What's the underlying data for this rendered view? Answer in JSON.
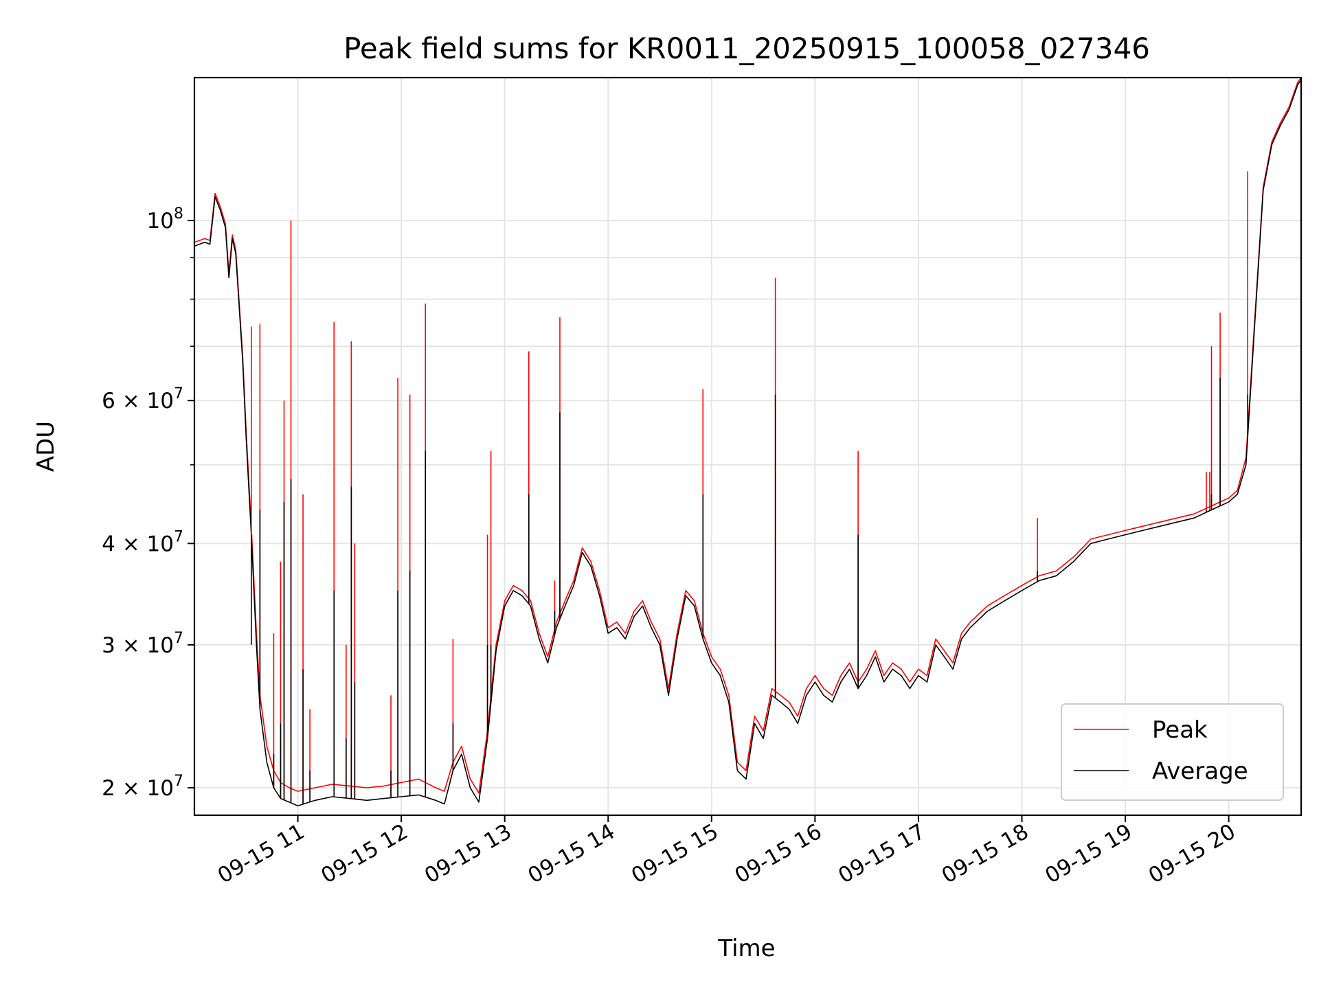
{
  "chart_data": {
    "type": "line",
    "title": "Peak field sums for KR0011_20250915_100058_027346",
    "xlabel": "Time",
    "ylabel": "ADU",
    "yscale": "log",
    "ylim": [
      18500000,
      150000000
    ],
    "xlim": [
      "2025-09-15 10:00",
      "2025-09-15 20:42"
    ],
    "grid": true,
    "legend_position": "lower-right",
    "colors": {
      "Peak": "#ff0000",
      "Average": "#000000"
    },
    "x_ticks": [
      {
        "label": "09-15 11",
        "value": "2025-09-15 11:00"
      },
      {
        "label": "09-15 12",
        "value": "2025-09-15 12:00"
      },
      {
        "label": "09-15 13",
        "value": "2025-09-15 13:00"
      },
      {
        "label": "09-15 14",
        "value": "2025-09-15 14:00"
      },
      {
        "label": "09-15 15",
        "value": "2025-09-15 15:00"
      },
      {
        "label": "09-15 16",
        "value": "2025-09-15 16:00"
      },
      {
        "label": "09-15 17",
        "value": "2025-09-15 17:00"
      },
      {
        "label": "09-15 18",
        "value": "2025-09-15 18:00"
      },
      {
        "label": "09-15 19",
        "value": "2025-09-15 19:00"
      },
      {
        "label": "09-15 20",
        "value": "2025-09-15 20:00"
      }
    ],
    "y_ticks": [
      {
        "label": "2 × 10^7",
        "value": 20000000
      },
      {
        "label": "3 × 10^7",
        "value": 30000000
      },
      {
        "label": "4 × 10^7",
        "value": 40000000
      },
      {
        "label": "6 × 10^7",
        "value": 60000000
      },
      {
        "label": "10^8",
        "value": 100000000
      }
    ],
    "y_minor_ticks": [
      50000000,
      70000000,
      80000000,
      90000000
    ],
    "series": [
      {
        "name": "Peak",
        "x": [
          "2025-09-15 10:00",
          "2025-09-15 10:06",
          "2025-09-15 10:09",
          "2025-09-15 10:12",
          "2025-09-15 10:15",
          "2025-09-15 10:18",
          "2025-09-15 10:20",
          "2025-09-15 10:22",
          "2025-09-15 10:24",
          "2025-09-15 10:28",
          "2025-09-15 10:30",
          "2025-09-15 10:33",
          "2025-09-15 10:36",
          "2025-09-15 10:38",
          "2025-09-15 10:42",
          "2025-09-15 10:46",
          "2025-09-15 10:50",
          "2025-09-15 10:55",
          "2025-09-15 11:00",
          "2025-09-15 11:10",
          "2025-09-15 11:20",
          "2025-09-15 11:30",
          "2025-09-15 11:40",
          "2025-09-15 11:50",
          "2025-09-15 12:00",
          "2025-09-15 12:10",
          "2025-09-15 12:20",
          "2025-09-15 12:25",
          "2025-09-15 12:30",
          "2025-09-15 12:35",
          "2025-09-15 12:40",
          "2025-09-15 12:45",
          "2025-09-15 12:50",
          "2025-09-15 12:55",
          "2025-09-15 13:00",
          "2025-09-15 13:05",
          "2025-09-15 13:10",
          "2025-09-15 13:15",
          "2025-09-15 13:20",
          "2025-09-15 13:25",
          "2025-09-15 13:30",
          "2025-09-15 13:35",
          "2025-09-15 13:40",
          "2025-09-15 13:45",
          "2025-09-15 13:50",
          "2025-09-15 13:55",
          "2025-09-15 14:00",
          "2025-09-15 14:05",
          "2025-09-15 14:10",
          "2025-09-15 14:15",
          "2025-09-15 14:20",
          "2025-09-15 14:25",
          "2025-09-15 14:30",
          "2025-09-15 14:35",
          "2025-09-15 14:40",
          "2025-09-15 14:45",
          "2025-09-15 14:50",
          "2025-09-15 14:55",
          "2025-09-15 15:00",
          "2025-09-15 15:05",
          "2025-09-15 15:10",
          "2025-09-15 15:15",
          "2025-09-15 15:20",
          "2025-09-15 15:25",
          "2025-09-15 15:30",
          "2025-09-15 15:35",
          "2025-09-15 15:40",
          "2025-09-15 15:45",
          "2025-09-15 15:50",
          "2025-09-15 15:55",
          "2025-09-15 16:00",
          "2025-09-15 16:05",
          "2025-09-15 16:10",
          "2025-09-15 16:15",
          "2025-09-15 16:20",
          "2025-09-15 16:25",
          "2025-09-15 16:30",
          "2025-09-15 16:35",
          "2025-09-15 16:40",
          "2025-09-15 16:45",
          "2025-09-15 16:50",
          "2025-09-15 16:55",
          "2025-09-15 17:00",
          "2025-09-15 17:05",
          "2025-09-15 17:10",
          "2025-09-15 17:15",
          "2025-09-15 17:20",
          "2025-09-15 17:25",
          "2025-09-15 17:30",
          "2025-09-15 17:40",
          "2025-09-15 17:50",
          "2025-09-15 18:00",
          "2025-09-15 18:10",
          "2025-09-15 18:20",
          "2025-09-15 18:30",
          "2025-09-15 18:40",
          "2025-09-15 18:50",
          "2025-09-15 19:00",
          "2025-09-15 19:10",
          "2025-09-15 19:20",
          "2025-09-15 19:30",
          "2025-09-15 19:40",
          "2025-09-15 19:50",
          "2025-09-15 20:00",
          "2025-09-15 20:05",
          "2025-09-15 20:10",
          "2025-09-15 20:15",
          "2025-09-15 20:20",
          "2025-09-15 20:25",
          "2025-09-15 20:30",
          "2025-09-15 20:35",
          "2025-09-15 20:40",
          "2025-09-15 20:42"
        ],
        "values": [
          94000000,
          95000000,
          94500000,
          108000000,
          104000000,
          99000000,
          86000000,
          96000000,
          92000000,
          68000000,
          55000000,
          42000000,
          31000000,
          26000000,
          22500000,
          21000000,
          20300000,
          20000000,
          19800000,
          20000000,
          20200000,
          20100000,
          20000000,
          20100000,
          20300000,
          20500000,
          20000000,
          19800000,
          21500000,
          22500000,
          20500000,
          19700000,
          23500000,
          30000000,
          34000000,
          35500000,
          35000000,
          34000000,
          31000000,
          29000000,
          32000000,
          34000000,
          36000000,
          39500000,
          38000000,
          35000000,
          31500000,
          32000000,
          31000000,
          33000000,
          34000000,
          32000000,
          30500000,
          26500000,
          31000000,
          35000000,
          34000000,
          31000000,
          29000000,
          28000000,
          26000000,
          21500000,
          21000000,
          24500000,
          23500000,
          26500000,
          26000000,
          25500000,
          24500000,
          26500000,
          27500000,
          26500000,
          26000000,
          27500000,
          28500000,
          27000000,
          28000000,
          29500000,
          27500000,
          28500000,
          28000000,
          27000000,
          28000000,
          27500000,
          30500000,
          29500000,
          28500000,
          31000000,
          32000000,
          33500000,
          34500000,
          35500000,
          36500000,
          37000000,
          38500000,
          40500000,
          41000000,
          41500000,
          42000000,
          42500000,
          43000000,
          43500000,
          44500000,
          45500000,
          46500000,
          51000000,
          75000000,
          110000000,
          125000000,
          132000000,
          138000000,
          148000000,
          150000000
        ]
      },
      {
        "name": "Average",
        "x": [
          "2025-09-15 10:00",
          "2025-09-15 10:06",
          "2025-09-15 10:09",
          "2025-09-15 10:12",
          "2025-09-15 10:15",
          "2025-09-15 10:18",
          "2025-09-15 10:20",
          "2025-09-15 10:22",
          "2025-09-15 10:24",
          "2025-09-15 10:28",
          "2025-09-15 10:30",
          "2025-09-15 10:33",
          "2025-09-15 10:36",
          "2025-09-15 10:38",
          "2025-09-15 10:42",
          "2025-09-15 10:46",
          "2025-09-15 10:50",
          "2025-09-15 10:55",
          "2025-09-15 11:00",
          "2025-09-15 11:10",
          "2025-09-15 11:20",
          "2025-09-15 11:30",
          "2025-09-15 11:40",
          "2025-09-15 11:50",
          "2025-09-15 12:00",
          "2025-09-15 12:10",
          "2025-09-15 12:20",
          "2025-09-15 12:25",
          "2025-09-15 12:30",
          "2025-09-15 12:35",
          "2025-09-15 12:40",
          "2025-09-15 12:45",
          "2025-09-15 12:50",
          "2025-09-15 12:55",
          "2025-09-15 13:00",
          "2025-09-15 13:05",
          "2025-09-15 13:10",
          "2025-09-15 13:15",
          "2025-09-15 13:20",
          "2025-09-15 13:25",
          "2025-09-15 13:30",
          "2025-09-15 13:35",
          "2025-09-15 13:40",
          "2025-09-15 13:45",
          "2025-09-15 13:50",
          "2025-09-15 13:55",
          "2025-09-15 14:00",
          "2025-09-15 14:05",
          "2025-09-15 14:10",
          "2025-09-15 14:15",
          "2025-09-15 14:20",
          "2025-09-15 14:25",
          "2025-09-15 14:30",
          "2025-09-15 14:35",
          "2025-09-15 14:40",
          "2025-09-15 14:45",
          "2025-09-15 14:50",
          "2025-09-15 14:55",
          "2025-09-15 15:00",
          "2025-09-15 15:05",
          "2025-09-15 15:10",
          "2025-09-15 15:15",
          "2025-09-15 15:20",
          "2025-09-15 15:25",
          "2025-09-15 15:30",
          "2025-09-15 15:35",
          "2025-09-15 15:40",
          "2025-09-15 15:45",
          "2025-09-15 15:50",
          "2025-09-15 15:55",
          "2025-09-15 16:00",
          "2025-09-15 16:05",
          "2025-09-15 16:10",
          "2025-09-15 16:15",
          "2025-09-15 16:20",
          "2025-09-15 16:25",
          "2025-09-15 16:30",
          "2025-09-15 16:35",
          "2025-09-15 16:40",
          "2025-09-15 16:45",
          "2025-09-15 16:50",
          "2025-09-15 16:55",
          "2025-09-15 17:00",
          "2025-09-15 17:05",
          "2025-09-15 17:10",
          "2025-09-15 17:15",
          "2025-09-15 17:20",
          "2025-09-15 17:25",
          "2025-09-15 17:30",
          "2025-09-15 17:40",
          "2025-09-15 17:50",
          "2025-09-15 18:00",
          "2025-09-15 18:10",
          "2025-09-15 18:20",
          "2025-09-15 18:30",
          "2025-09-15 18:40",
          "2025-09-15 18:50",
          "2025-09-15 19:00",
          "2025-09-15 19:10",
          "2025-09-15 19:20",
          "2025-09-15 19:30",
          "2025-09-15 19:40",
          "2025-09-15 19:50",
          "2025-09-15 20:00",
          "2025-09-15 20:05",
          "2025-09-15 20:10",
          "2025-09-15 20:15",
          "2025-09-15 20:20",
          "2025-09-15 20:25",
          "2025-09-15 20:30",
          "2025-09-15 20:35",
          "2025-09-15 20:40",
          "2025-09-15 20:42"
        ],
        "values": [
          93000000,
          94000000,
          93500000,
          107000000,
          103000000,
          98000000,
          85000000,
          95000000,
          91000000,
          67000000,
          54000000,
          41000000,
          30000000,
          25000000,
          21500000,
          20000000,
          19400000,
          19200000,
          19000000,
          19300000,
          19500000,
          19400000,
          19300000,
          19400000,
          19500000,
          19600000,
          19300000,
          19100000,
          21000000,
          22000000,
          20000000,
          19200000,
          23000000,
          29500000,
          33500000,
          35000000,
          34500000,
          33500000,
          30500000,
          28500000,
          31500000,
          33500000,
          35500000,
          39000000,
          37500000,
          34500000,
          31000000,
          31500000,
          30500000,
          32500000,
          33500000,
          31500000,
          30000000,
          26000000,
          30500000,
          34500000,
          33500000,
          30500000,
          28500000,
          27500000,
          25500000,
          21000000,
          20500000,
          24000000,
          23000000,
          26000000,
          25500000,
          25000000,
          24000000,
          26000000,
          27000000,
          26000000,
          25500000,
          27000000,
          28000000,
          26500000,
          27500000,
          29000000,
          27000000,
          28000000,
          27500000,
          26500000,
          27500000,
          27000000,
          30000000,
          29000000,
          28000000,
          30500000,
          31500000,
          33000000,
          34000000,
          35000000,
          36000000,
          36500000,
          38000000,
          40000000,
          40500000,
          41000000,
          41500000,
          42000000,
          42500000,
          43000000,
          44000000,
          45000000,
          46000000,
          50000000,
          74000000,
          109000000,
          124000000,
          131000000,
          137000000,
          147000000,
          149000000
        ]
      }
    ],
    "spikes": [
      {
        "x": "2025-09-15 10:33",
        "peak": 74000000,
        "average": 30000000
      },
      {
        "x": "2025-09-15 10:38",
        "peak": 74500000,
        "average": 44000000
      },
      {
        "x": "2025-09-15 10:46",
        "peak": 31000000,
        "average": 22000000
      },
      {
        "x": "2025-09-15 10:50",
        "peak": 38000000,
        "average": 24000000
      },
      {
        "x": "2025-09-15 10:52",
        "peak": 60000000,
        "average": 45000000
      },
      {
        "x": "2025-09-15 10:56",
        "peak": 100000000,
        "average": 48000000
      },
      {
        "x": "2025-09-15 11:03",
        "peak": 46000000,
        "average": 28000000
      },
      {
        "x": "2025-09-15 11:07",
        "peak": 25000000,
        "average": 21000000
      },
      {
        "x": "2025-09-15 11:21",
        "peak": 75000000,
        "average": 35000000
      },
      {
        "x": "2025-09-15 11:28",
        "peak": 30000000,
        "average": 23000000
      },
      {
        "x": "2025-09-15 11:31",
        "peak": 71000000,
        "average": 47000000
      },
      {
        "x": "2025-09-15 11:33",
        "peak": 40000000,
        "average": 27000000
      },
      {
        "x": "2025-09-15 11:54",
        "peak": 26000000,
        "average": 21000000
      },
      {
        "x": "2025-09-15 11:58",
        "peak": 64000000,
        "average": 35000000
      },
      {
        "x": "2025-09-15 12:05",
        "peak": 61000000,
        "average": 37000000
      },
      {
        "x": "2025-09-15 12:14",
        "peak": 79000000,
        "average": 52000000
      },
      {
        "x": "2025-09-15 12:30",
        "peak": 30500000,
        "average": 24000000
      },
      {
        "x": "2025-09-15 12:50",
        "peak": 41000000,
        "average": 30000000
      },
      {
        "x": "2025-09-15 12:52",
        "peak": 52000000,
        "average": 30000000
      },
      {
        "x": "2025-09-15 13:14",
        "peak": 69000000,
        "average": 46000000
      },
      {
        "x": "2025-09-15 13:29",
        "peak": 36000000,
        "average": 33000000
      },
      {
        "x": "2025-09-15 13:32",
        "peak": 76000000,
        "average": 58000000
      },
      {
        "x": "2025-09-15 14:55",
        "peak": 62000000,
        "average": 46000000
      },
      {
        "x": "2025-09-15 15:37",
        "peak": 85000000,
        "average": 61000000
      },
      {
        "x": "2025-09-15 16:25",
        "peak": 52000000,
        "average": 41000000
      },
      {
        "x": "2025-09-15 18:09",
        "peak": 43000000,
        "average": 37000000
      },
      {
        "x": "2025-09-15 19:47",
        "peak": 49000000,
        "average": 44000000
      },
      {
        "x": "2025-09-15 19:49",
        "peak": 49000000,
        "average": 44000000
      },
      {
        "x": "2025-09-15 19:50",
        "peak": 70000000,
        "average": 46000000
      },
      {
        "x": "2025-09-15 19:55",
        "peak": 77000000,
        "average": 64000000
      },
      {
        "x": "2025-09-15 20:11",
        "peak": 115000000,
        "average": 61000000
      }
    ]
  }
}
